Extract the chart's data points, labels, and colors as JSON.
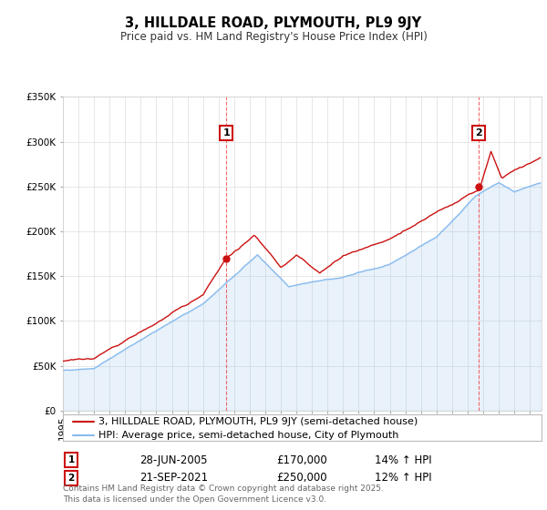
{
  "title": "3, HILLDALE ROAD, PLYMOUTH, PL9 9JY",
  "subtitle": "Price paid vs. HM Land Registry's House Price Index (HPI)",
  "ylim": [
    0,
    350000
  ],
  "yticks": [
    0,
    50000,
    100000,
    150000,
    200000,
    250000,
    300000,
    350000
  ],
  "ytick_labels": [
    "£0",
    "£50K",
    "£100K",
    "£150K",
    "£200K",
    "£250K",
    "£300K",
    "£350K"
  ],
  "xlim_start": 1995.0,
  "xlim_end": 2025.75,
  "hpi_color": "#88bbee",
  "price_color": "#cc1111",
  "transaction1_year": 2005.49,
  "transaction1_price": 170000,
  "transaction1_date": "28-JUN-2005",
  "transaction1_hpi_pct": "14%",
  "transaction2_year": 2021.72,
  "transaction2_price": 250000,
  "transaction2_date": "21-SEP-2021",
  "transaction2_hpi_pct": "12%",
  "legend_line1": "3, HILLDALE ROAD, PLYMOUTH, PL9 9JY (semi-detached house)",
  "legend_line2": "HPI: Average price, semi-detached house, City of Plymouth",
  "footer": "Contains HM Land Registry data © Crown copyright and database right 2025.\nThis data is licensed under the Open Government Licence v3.0.",
  "title_fontsize": 10.5,
  "subtitle_fontsize": 8.5,
  "tick_fontsize": 7.5,
  "legend_fontsize": 8,
  "footer_fontsize": 6.5,
  "background_color": "#ffffff",
  "grid_color": "#dddddd",
  "box_label_color": "#cc1111"
}
